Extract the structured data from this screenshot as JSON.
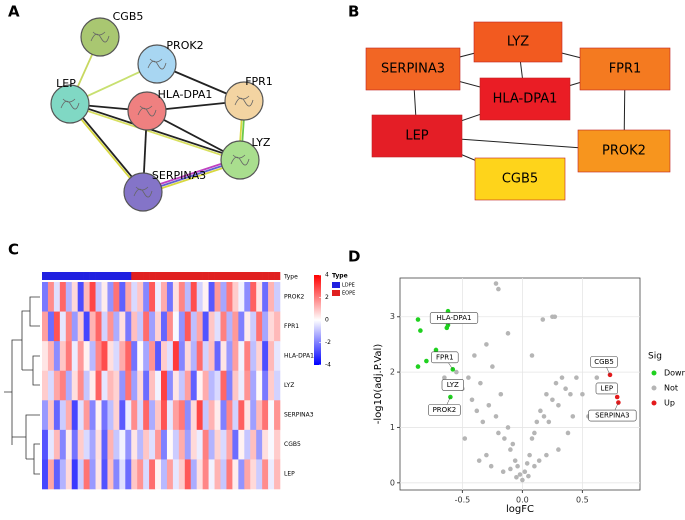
{
  "panels": [
    "A",
    "B",
    "C",
    "D"
  ],
  "network_a": {
    "nodes": [
      "CGB5",
      "PROK2",
      "LEP",
      "HLA-DPA1",
      "FPR1",
      "SERPINA3",
      "LYZ"
    ]
  },
  "network_b": {
    "nodes": [
      "LYZ",
      "SERPINA3",
      "FPR1",
      "HLA-DPA1",
      "LEP",
      "PROK2",
      "CGB5"
    ]
  },
  "chart_data": [
    {
      "type": "heatmap",
      "annotation_label": "Type",
      "legend_title": "Type",
      "rows": [
        "PROK2",
        "FPR1",
        "HLA-DPA1",
        "LYZ",
        "SERPINA3",
        "CGB5",
        "LEP"
      ],
      "group_names": [
        "LDPE",
        "EOPE"
      ],
      "group_colors": [
        "#2020e0",
        "#e02020"
      ],
      "groups": [
        "LDPE",
        "LDPE",
        "LDPE",
        "LDPE",
        "LDPE",
        "LDPE",
        "LDPE",
        "LDPE",
        "LDPE",
        "LDPE",
        "LDPE",
        "LDPE",
        "LDPE",
        "LDPE",
        "LDPE",
        "EOPE",
        "EOPE",
        "EOPE",
        "EOPE",
        "EOPE",
        "EOPE",
        "EOPE",
        "EOPE",
        "EOPE",
        "EOPE",
        "EOPE",
        "EOPE",
        "EOPE",
        "EOPE",
        "EOPE",
        "EOPE",
        "EOPE",
        "EOPE",
        "EOPE",
        "EOPE",
        "EOPE",
        "EOPE",
        "EOPE",
        "EOPE",
        "EOPE"
      ],
      "values": [
        [
          -2.1,
          1.8,
          -0.5,
          2.4,
          -1.2,
          0.6,
          -2.8,
          1.1,
          2.9,
          -0.9,
          0.3,
          -1.7,
          2.2,
          -2.5,
          1.4,
          -0.6,
          0.9,
          -1.9,
          2.6,
          -0.3,
          1.3,
          -2.2,
          0.5,
          1.9,
          -1.1,
          2.8,
          -0.7,
          0.2,
          -2.6,
          1.6,
          -1.4,
          2.1,
          0.8,
          -0.2,
          -1.8,
          2.5,
          0.4,
          -2.3,
          1.2,
          -0.8
        ],
        [
          1.5,
          -2.3,
          2.7,
          -0.4,
          1.9,
          -1.6,
          0.8,
          -2.9,
          1.2,
          2.4,
          -0.7,
          1.7,
          -1.3,
          0.5,
          -2.1,
          1.0,
          -0.9,
          2.3,
          -1.5,
          0.7,
          -2.4,
          1.8,
          -0.1,
          -1.7,
          2.6,
          -1.0,
          1.4,
          -2.7,
          0.9,
          -0.5,
          2.0,
          -1.2,
          1.6,
          -2.0,
          0.3,
          -0.8,
          2.2,
          -1.4,
          0.6,
          1.1
        ],
        [
          0.4,
          1.2,
          -1.8,
          0.9,
          2.1,
          -0.3,
          1.6,
          0.2,
          -1.1,
          1.9,
          2.8,
          0.5,
          -0.6,
          1.3,
          2.4,
          -2.2,
          0.1,
          -1.4,
          1.7,
          -2.6,
          0.8,
          -0.5,
          3.1,
          -1.9,
          0.6,
          -1.2,
          2.3,
          -0.7,
          1.0,
          -2.4,
          0.4,
          -1.6,
          1.5,
          -0.2,
          2.0,
          -1.0,
          0.7,
          -2.8,
          1.1,
          -0.4
        ],
        [
          0.8,
          -0.6,
          1.4,
          2.0,
          -1.3,
          0.5,
          1.8,
          -0.9,
          0.3,
          2.5,
          -0.4,
          1.1,
          0.7,
          -1.7,
          2.2,
          -1.5,
          0.6,
          -2.3,
          1.0,
          -0.2,
          3.0,
          -1.8,
          0.4,
          -0.9,
          1.5,
          -2.5,
          0.2,
          1.3,
          -1.1,
          -0.6,
          2.4,
          -2.0,
          0.9,
          -0.3,
          1.7,
          -1.4,
          0.1,
          -2.1,
          0.8,
          -0.7
        ],
        [
          -1.6,
          0.9,
          -2.4,
          -0.8,
          1.3,
          -2.9,
          -0.5,
          1.6,
          -1.9,
          0.2,
          -2.2,
          -1.0,
          0.7,
          -2.6,
          -0.3,
          1.8,
          -0.6,
          2.4,
          -1.3,
          0.9,
          2.7,
          -0.4,
          1.5,
          2.1,
          -1.8,
          0.6,
          2.9,
          -0.9,
          1.2,
          0.3,
          -2.0,
          1.9,
          -0.7,
          2.5,
          0.4,
          -1.5,
          1.1,
          2.2,
          -0.1,
          1.7
        ],
        [
          -2.7,
          -0.4,
          1.1,
          -1.9,
          0.3,
          -2.2,
          0.8,
          -0.6,
          -1.4,
          0.5,
          -2.5,
          1.2,
          -0.9,
          -0.2,
          -1.7,
          0.4,
          -1.1,
          0.9,
          -0.5,
          1.6,
          -2.0,
          0.1,
          -0.8,
          1.3,
          -1.5,
          0.6,
          -0.3,
          2.0,
          -1.2,
          0.7,
          -0.6,
          1.4,
          -2.3,
          0.2,
          -0.9,
          1.0,
          -1.6,
          0.5,
          -0.1,
          0.8
        ],
        [
          -2.9,
          1.4,
          -2.5,
          -1.2,
          0.6,
          -3.1,
          -0.8,
          2.2,
          -1.6,
          0.4,
          -2.7,
          1.0,
          -1.9,
          -0.5,
          -2.3,
          0.9,
          1.7,
          -0.6,
          2.3,
          0.2,
          -1.1,
          1.5,
          -0.4,
          0.8,
          2.6,
          -1.3,
          0.5,
          1.9,
          -0.2,
          1.2,
          -0.9,
          2.1,
          0.3,
          -1.7,
          1.4,
          0.6,
          -0.8,
          1.8,
          -0.3,
          1.1
        ]
      ],
      "ylim": [
        -4,
        4
      ],
      "yticks": [
        4,
        2,
        0,
        -2,
        -4
      ],
      "colors": [
        "#0000ff",
        "#ffffff",
        "#ff0000"
      ]
    },
    {
      "type": "scatter",
      "xlabel": "logFC",
      "ylabel": "-log10(adj.P.Val)",
      "legend_title": "Sig",
      "xlim": [
        -1.02,
        0.98
      ],
      "ylim": [
        -0.13,
        3.7
      ],
      "xticks": [
        {
          "value": -0.5,
          "label": "-0.5"
        },
        {
          "value": 0,
          "label": "0.0"
        },
        {
          "value": 0.5,
          "label": "0.5"
        }
      ],
      "yticks": [
        0,
        1,
        2,
        3
      ],
      "grid": true,
      "series": [
        {
          "name": "Down",
          "color": "#1fd11f",
          "x": [
            -0.87,
            -0.85,
            -0.62,
            -0.8,
            -0.87,
            -0.7,
            -0.6,
            -0.72,
            -0.63,
            -0.62,
            -0.58,
            -0.58,
            -0.6
          ],
          "values": [
            2.95,
            2.75,
            3.1,
            2.2,
            2.1,
            2.25,
            2.25,
            2.4,
            2.8,
            2.85,
            2.05,
            1.75,
            1.55
          ],
          "labels": [
            null,
            null,
            null,
            null,
            null,
            null,
            null,
            null,
            null,
            "HLA-DPA1",
            "FPR1",
            "LYZ",
            "PROK2"
          ]
        },
        {
          "name": "Not",
          "color": "#b5b5b5",
          "x": [
            -0.55,
            -0.5,
            -0.45,
            -0.42,
            -0.4,
            -0.38,
            -0.35,
            -0.33,
            -0.3,
            -0.28,
            -0.25,
            -0.22,
            -0.2,
            -0.18,
            -0.15,
            -0.12,
            -0.1,
            -0.08,
            -0.06,
            -0.04,
            -0.02,
            0,
            0.02,
            0.04,
            0.06,
            0.08,
            0.1,
            0.12,
            0.15,
            0.18,
            0.2,
            0.22,
            0.25,
            0.28,
            0.3,
            0.33,
            0.36,
            0.4,
            0.45,
            0.5,
            -0.22,
            -0.2,
            0.17,
            0.25,
            0.27,
            -0.3,
            -0.26,
            -0.16,
            -0.1,
            -0.05,
            0.05,
            0.1,
            0.14,
            0.2,
            0.3,
            0.38,
            0.42,
            -0.48,
            -0.36,
            0.55,
            0.65,
            0.62,
            -0.65,
            -0.12,
            0.08
          ],
          "values": [
            2.0,
            1.7,
            1.9,
            1.5,
            2.3,
            1.3,
            1.8,
            1.1,
            2.5,
            1.4,
            2.1,
            1.2,
            0.9,
            1.6,
            0.8,
            1.0,
            0.6,
            0.7,
            0.4,
            0.3,
            0.15,
            0.05,
            0.2,
            0.35,
            0.5,
            0.8,
            0.9,
            1.1,
            1.3,
            1.2,
            1.6,
            1.1,
            1.5,
            1.8,
            1.4,
            1.9,
            1.7,
            1.6,
            1.9,
            1.6,
            3.6,
            3.5,
            2.95,
            3.0,
            3.0,
            0.5,
            0.3,
            0.2,
            0.25,
            0.1,
            0.12,
            0.3,
            0.4,
            0.5,
            0.6,
            0.9,
            1.2,
            0.8,
            0.4,
            1.2,
            1.7,
            1.9,
            1.9,
            2.7,
            2.3
          ]
        },
        {
          "name": "Up",
          "color": "#e41a1c",
          "x": [
            0.73,
            0.77,
            0.8,
            0.76,
            0.79
          ],
          "values": [
            1.95,
            1.65,
            1.45,
            1.75,
            1.55
          ],
          "labels": [
            "CGB5",
            "LEP",
            "SERPINA3",
            null,
            null
          ]
        }
      ]
    }
  ]
}
